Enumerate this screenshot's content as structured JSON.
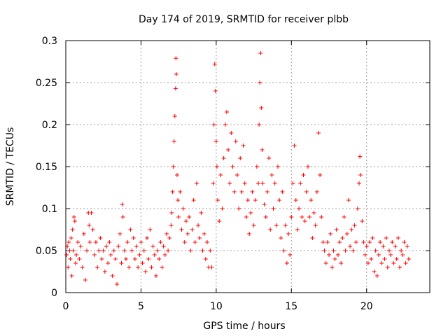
{
  "chart_data": {
    "type": "scatter",
    "title": "Day 174 of 2019, SRMTID for receiver plbb",
    "xlabel": "GPS time / hours",
    "ylabel": "SRMTID / TECUs",
    "xlim": [
      0,
      24.2
    ],
    "ylim": [
      0,
      0.3
    ],
    "x_ticks": [
      0,
      5,
      10,
      15,
      20
    ],
    "x_tick_labels": [
      "0",
      "5",
      "10",
      "15",
      "20"
    ],
    "y_ticks": [
      0,
      0.05,
      0.1,
      0.15,
      0.2,
      0.25,
      0.3
    ],
    "y_tick_labels": [
      "0",
      "0.05",
      "0.1",
      "0.15",
      "0.2",
      "0.25",
      "0.3"
    ],
    "grid": true,
    "marker": "+",
    "marker_color": "#ff0000",
    "series": [
      {
        "name": "SRMTID",
        "note": "Representative sample of dense point cloud, values in data units",
        "points": [
          [
            0.05,
            0.045
          ],
          [
            0.1,
            0.055
          ],
          [
            0.15,
            0.03
          ],
          [
            0.2,
            0.06
          ],
          [
            0.25,
            0.05
          ],
          [
            0.3,
            0.04
          ],
          [
            0.35,
            0.065
          ],
          [
            0.4,
            0.02
          ],
          [
            0.45,
            0.075
          ],
          [
            0.5,
            0.05
          ],
          [
            0.55,
            0.09
          ],
          [
            0.6,
            0.085
          ],
          [
            0.65,
            0.035
          ],
          [
            0.7,
            0.045
          ],
          [
            0.8,
            0.06
          ],
          [
            0.9,
            0.04
          ],
          [
            1.0,
            0.055
          ],
          [
            1.1,
            0.03
          ],
          [
            1.2,
            0.07
          ],
          [
            1.3,
            0.015
          ],
          [
            1.4,
            0.05
          ],
          [
            1.5,
            0.095
          ],
          [
            1.55,
            0.08
          ],
          [
            1.6,
            0.06
          ],
          [
            1.7,
            0.095
          ],
          [
            1.8,
            0.075
          ],
          [
            1.9,
            0.045
          ],
          [
            2.0,
            0.06
          ],
          [
            2.1,
            0.03
          ],
          [
            2.2,
            0.05
          ],
          [
            2.3,
            0.065
          ],
          [
            2.4,
            0.04
          ],
          [
            2.5,
            0.05
          ],
          [
            2.6,
            0.025
          ],
          [
            2.7,
            0.055
          ],
          [
            2.8,
            0.035
          ],
          [
            2.9,
            0.06
          ],
          [
            3.0,
            0.045
          ],
          [
            3.1,
            0.02
          ],
          [
            3.2,
            0.05
          ],
          [
            3.3,
            0.04
          ],
          [
            3.4,
            0.01
          ],
          [
            3.5,
            0.055
          ],
          [
            3.6,
            0.07
          ],
          [
            3.7,
            0.035
          ],
          [
            3.75,
            0.105
          ],
          [
            3.8,
            0.09
          ],
          [
            3.9,
            0.05
          ],
          [
            4.0,
            0.04
          ],
          [
            4.1,
            0.06
          ],
          [
            4.2,
            0.03
          ],
          [
            4.3,
            0.075
          ],
          [
            4.4,
            0.05
          ],
          [
            4.5,
            0.065
          ],
          [
            4.6,
            0.04
          ],
          [
            4.7,
            0.055
          ],
          [
            4.8,
            0.03
          ],
          [
            4.9,
            0.045
          ],
          [
            5.0,
            0.06
          ],
          [
            5.1,
            0.035
          ],
          [
            5.2,
            0.05
          ],
          [
            5.3,
            0.025
          ],
          [
            5.4,
            0.065
          ],
          [
            5.5,
            0.04
          ],
          [
            5.6,
            0.075
          ],
          [
            5.7,
            0.03
          ],
          [
            5.8,
            0.055
          ],
          [
            5.9,
            0.045
          ],
          [
            6.0,
            0.02
          ],
          [
            6.1,
            0.05
          ],
          [
            6.2,
            0.04
          ],
          [
            6.3,
            0.06
          ],
          [
            6.4,
            0.03
          ],
          [
            6.5,
            0.055
          ],
          [
            6.6,
            0.045
          ],
          [
            6.7,
            0.07
          ],
          [
            6.8,
            0.05
          ],
          [
            6.9,
            0.065
          ],
          [
            7.0,
            0.08
          ],
          [
            7.05,
            0.095
          ],
          [
            7.1,
            0.12
          ],
          [
            7.15,
            0.15
          ],
          [
            7.2,
            0.18
          ],
          [
            7.25,
            0.21
          ],
          [
            7.3,
            0.243
          ],
          [
            7.32,
            0.279
          ],
          [
            7.35,
            0.26
          ],
          [
            7.4,
            0.14
          ],
          [
            7.45,
            0.11
          ],
          [
            7.5,
            0.09
          ],
          [
            7.6,
            0.12
          ],
          [
            7.7,
            0.075
          ],
          [
            7.8,
            0.1
          ],
          [
            7.9,
            0.06
          ],
          [
            8.0,
            0.085
          ],
          [
            8.1,
            0.07
          ],
          [
            8.2,
            0.09
          ],
          [
            8.3,
            0.05
          ],
          [
            8.4,
            0.075
          ],
          [
            8.5,
            0.11
          ],
          [
            8.6,
            0.06
          ],
          [
            8.7,
            0.13
          ],
          [
            8.8,
            0.08
          ],
          [
            8.9,
            0.065
          ],
          [
            9.0,
            0.095
          ],
          [
            9.1,
            0.05
          ],
          [
            9.2,
            0.07
          ],
          [
            9.3,
            0.04
          ],
          [
            9.4,
            0.06
          ],
          [
            9.5,
            0.03
          ],
          [
            9.6,
            0.05
          ],
          [
            9.7,
            0.03
          ],
          [
            9.8,
            0.13
          ],
          [
            9.85,
            0.2
          ],
          [
            9.9,
            0.272
          ],
          [
            9.95,
            0.24
          ],
          [
            10.0,
            0.18
          ],
          [
            10.05,
            0.15
          ],
          [
            10.1,
            0.11
          ],
          [
            10.2,
            0.085
          ],
          [
            10.3,
            0.14
          ],
          [
            10.4,
            0.1
          ],
          [
            10.5,
            0.16
          ],
          [
            10.6,
            0.2
          ],
          [
            10.7,
            0.215
          ],
          [
            10.8,
            0.17
          ],
          [
            10.9,
            0.13
          ],
          [
            11.0,
            0.19
          ],
          [
            11.1,
            0.15
          ],
          [
            11.2,
            0.12
          ],
          [
            11.3,
            0.18
          ],
          [
            11.4,
            0.14
          ],
          [
            11.5,
            0.1
          ],
          [
            11.6,
            0.16
          ],
          [
            11.7,
            0.12
          ],
          [
            11.8,
            0.175
          ],
          [
            11.9,
            0.13
          ],
          [
            12.0,
            0.09
          ],
          [
            12.1,
            0.11
          ],
          [
            12.2,
            0.07
          ],
          [
            12.3,
            0.095
          ],
          [
            12.4,
            0.12
          ],
          [
            12.5,
            0.08
          ],
          [
            12.6,
            0.11
          ],
          [
            12.7,
            0.15
          ],
          [
            12.8,
            0.13
          ],
          [
            12.85,
            0.2
          ],
          [
            12.9,
            0.25
          ],
          [
            12.95,
            0.285
          ],
          [
            13.0,
            0.22
          ],
          [
            13.05,
            0.17
          ],
          [
            13.1,
            0.13
          ],
          [
            13.2,
            0.105
          ],
          [
            13.3,
            0.09
          ],
          [
            13.4,
            0.12
          ],
          [
            13.5,
            0.16
          ],
          [
            13.6,
            0.075
          ],
          [
            13.7,
            0.14
          ],
          [
            13.8,
            0.1
          ],
          [
            13.9,
            0.13
          ],
          [
            14.0,
            0.08
          ],
          [
            14.1,
            0.15
          ],
          [
            14.2,
            0.11
          ],
          [
            14.3,
            0.065
          ],
          [
            14.4,
            0.12
          ],
          [
            14.5,
            0.05
          ],
          [
            14.6,
            0.08
          ],
          [
            14.7,
            0.035
          ],
          [
            14.8,
            0.07
          ],
          [
            14.9,
            0.045
          ],
          [
            15.0,
            0.09
          ],
          [
            15.1,
            0.13
          ],
          [
            15.2,
            0.175
          ],
          [
            15.3,
            0.11
          ],
          [
            15.4,
            0.075
          ],
          [
            15.5,
            0.1
          ],
          [
            15.6,
            0.13
          ],
          [
            15.7,
            0.09
          ],
          [
            15.8,
            0.14
          ],
          [
            15.9,
            0.085
          ],
          [
            16.0,
            0.12
          ],
          [
            16.1,
            0.15
          ],
          [
            16.2,
            0.09
          ],
          [
            16.3,
            0.11
          ],
          [
            16.4,
            0.065
          ],
          [
            16.5,
            0.095
          ],
          [
            16.6,
            0.08
          ],
          [
            16.7,
            0.12
          ],
          [
            16.8,
            0.19
          ],
          [
            16.9,
            0.14
          ],
          [
            17.0,
            0.09
          ],
          [
            17.1,
            0.06
          ],
          [
            17.2,
            0.05
          ],
          [
            17.3,
            0.035
          ],
          [
            17.4,
            0.06
          ],
          [
            17.5,
            0.045
          ],
          [
            17.6,
            0.07
          ],
          [
            17.7,
            0.03
          ],
          [
            17.8,
            0.05
          ],
          [
            17.9,
            0.04
          ],
          [
            18.0,
            0.075
          ],
          [
            18.1,
            0.045
          ],
          [
            18.2,
            0.06
          ],
          [
            18.3,
            0.035
          ],
          [
            18.4,
            0.065
          ],
          [
            18.5,
            0.09
          ],
          [
            18.6,
            0.05
          ],
          [
            18.7,
            0.07
          ],
          [
            18.8,
            0.11
          ],
          [
            18.9,
            0.055
          ],
          [
            19.0,
            0.075
          ],
          [
            19.1,
            0.05
          ],
          [
            19.2,
            0.08
          ],
          [
            19.3,
            0.06
          ],
          [
            19.4,
            0.1
          ],
          [
            19.5,
            0.13
          ],
          [
            19.55,
            0.162
          ],
          [
            19.6,
            0.14
          ],
          [
            19.7,
            0.085
          ],
          [
            19.8,
            0.06
          ],
          [
            19.9,
            0.045
          ],
          [
            20.0,
            0.055
          ],
          [
            20.1,
            0.035
          ],
          [
            20.2,
            0.06
          ],
          [
            20.3,
            0.04
          ],
          [
            20.4,
            0.065
          ],
          [
            20.5,
            0.025
          ],
          [
            20.6,
            0.05
          ],
          [
            20.7,
            0.02
          ],
          [
            20.8,
            0.045
          ],
          [
            20.9,
            0.06
          ],
          [
            21.0,
            0.035
          ],
          [
            21.1,
            0.055
          ],
          [
            21.2,
            0.04
          ],
          [
            21.3,
            0.065
          ],
          [
            21.4,
            0.03
          ],
          [
            21.5,
            0.05
          ],
          [
            21.6,
            0.045
          ],
          [
            21.7,
            0.06
          ],
          [
            21.8,
            0.035
          ],
          [
            21.9,
            0.055
          ],
          [
            22.0,
            0.04
          ],
          [
            22.1,
            0.065
          ],
          [
            22.2,
            0.03
          ],
          [
            22.3,
            0.05
          ],
          [
            22.4,
            0.045
          ],
          [
            22.5,
            0.06
          ],
          [
            22.6,
            0.035
          ],
          [
            22.7,
            0.055
          ],
          [
            22.8,
            0.04
          ]
        ]
      }
    ]
  }
}
